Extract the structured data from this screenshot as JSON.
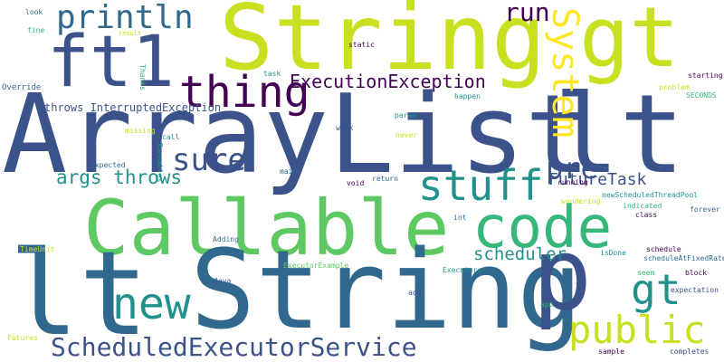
{
  "palette": {
    "purple": "#440154",
    "navy": "#3b528b",
    "blue": "#31688e",
    "teal": "#21918c",
    "green": "#35b779",
    "lightgreen": "#5ec962",
    "lime": "#c8e020",
    "yellow": "#fde725"
  },
  "words": [
    "ArrayList",
    "lt",
    "String",
    "gt",
    "Callable",
    "lt",
    "String",
    "p",
    "ft1",
    "code",
    "thing",
    "println",
    "System",
    "stuff",
    "public",
    "ScheduledExecutorService",
    "ExecutionException",
    "new",
    "run",
    "sure",
    "pre",
    "gt",
    "args throws",
    "FutureTask",
    "scheduler",
    "throws InterruptedException",
    "Override",
    "look",
    "fine",
    "result",
    "static",
    "task",
    "Thanks",
    "missing",
    "call",
    "expected",
    "Runnables",
    "main",
    "void",
    "return",
    "param",
    "never",
    "work",
    "happen",
    "starting",
    "problem",
    "SECONDS",
    "running",
    "wondering",
    "newScheduledThreadPool",
    "indicated",
    "class",
    "forever",
    "int",
    "Adding",
    "TimeUnit",
    "ExecutorExample",
    "Executors",
    "isDone",
    "schedule",
    "scheduleAtFixedRate",
    "seem",
    "block",
    "expectation",
    "Java",
    "add",
    "app",
    "Futures",
    "sample",
    "completes"
  ]
}
